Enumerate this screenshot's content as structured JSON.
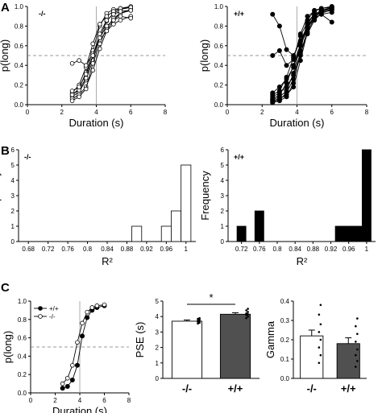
{
  "panel_labels": {
    "a": "A",
    "b": "B",
    "c": "C"
  },
  "chart_data": [
    {
      "id": "A1",
      "type": "line",
      "group_label": "-/-",
      "xlabel": "Duration (s)",
      "ylabel": "p(long)",
      "xlim": [
        0,
        8
      ],
      "ylim": [
        0,
        1.0
      ],
      "xticks": [
        "0",
        "2",
        "4",
        "6",
        "8"
      ],
      "yticks": [
        "0.0",
        "0.2",
        "0.4",
        "0.6",
        "0.8",
        "1.0"
      ],
      "marker": "open-circle",
      "reference_lines": {
        "x": 4,
        "y": 0.5
      },
      "x": [
        2.6,
        3.0,
        3.4,
        3.8,
        4.2,
        4.6,
        5.0,
        5.4,
        6.0
      ],
      "series": [
        {
          "values": [
            0.1,
            0.16,
            0.33,
            0.55,
            0.8,
            0.93,
            0.97,
            0.98,
            1.0
          ]
        },
        {
          "values": [
            0.08,
            0.13,
            0.25,
            0.45,
            0.68,
            0.85,
            0.93,
            0.97,
            0.99
          ]
        },
        {
          "values": [
            0.06,
            0.1,
            0.18,
            0.35,
            0.57,
            0.75,
            0.86,
            0.93,
            0.97
          ]
        },
        {
          "values": [
            0.12,
            0.2,
            0.38,
            0.62,
            0.82,
            0.9,
            0.95,
            0.98,
            0.99
          ]
        },
        {
          "values": [
            0.04,
            0.08,
            0.16,
            0.42,
            0.62,
            0.78,
            0.88,
            0.93,
            0.96
          ]
        },
        {
          "values": [
            0.1,
            0.15,
            0.27,
            0.5,
            0.72,
            0.86,
            0.92,
            0.95,
            0.96
          ]
        },
        {
          "values": [
            0.42,
            0.45,
            0.4,
            0.52,
            0.66,
            0.75,
            0.82,
            0.86,
            0.9
          ]
        },
        {
          "values": [
            0.14,
            0.18,
            0.31,
            0.5,
            0.68,
            0.8,
            0.86,
            0.9,
            0.88
          ]
        }
      ]
    },
    {
      "id": "A2",
      "type": "line",
      "group_label": "+/+",
      "xlabel": "Duration (s)",
      "ylabel": "p(long)",
      "xlim": [
        0,
        8
      ],
      "ylim": [
        0,
        1.0
      ],
      "xticks": [
        "0",
        "2",
        "4",
        "6",
        "8"
      ],
      "yticks": [
        "0.0",
        "0.2",
        "0.4",
        "0.6",
        "0.8",
        "1.0"
      ],
      "marker": "filled-circle",
      "reference_lines": {
        "x": 4,
        "y": 0.5
      },
      "x": [
        2.6,
        3.0,
        3.4,
        3.8,
        4.2,
        4.6,
        5.0,
        5.4,
        6.0
      ],
      "series": [
        {
          "values": [
            0.06,
            0.1,
            0.22,
            0.4,
            0.62,
            0.82,
            0.92,
            0.96,
            0.99
          ]
        },
        {
          "values": [
            0.04,
            0.06,
            0.1,
            0.18,
            0.45,
            0.74,
            0.88,
            0.95,
            0.97
          ]
        },
        {
          "values": [
            0.02,
            0.04,
            0.08,
            0.22,
            0.55,
            0.86,
            0.96,
            0.98,
            1.0
          ]
        },
        {
          "values": [
            0.05,
            0.08,
            0.14,
            0.32,
            0.6,
            0.8,
            0.9,
            0.96,
            0.98
          ]
        },
        {
          "values": [
            0.1,
            0.14,
            0.28,
            0.48,
            0.7,
            0.84,
            0.92,
            0.94,
            0.96
          ]
        },
        {
          "values": [
            0.08,
            0.12,
            0.18,
            0.3,
            0.52,
            0.72,
            0.86,
            0.93,
            0.97
          ]
        },
        {
          "values": [
            0.5,
            0.55,
            0.4,
            0.46,
            0.72,
            0.9,
            0.95,
            0.98,
            0.99
          ]
        },
        {
          "values": [
            0.92,
            0.8,
            0.56,
            0.5,
            0.65,
            0.8,
            0.88,
            0.92,
            0.94
          ]
        },
        {
          "values": [
            0.03,
            0.05,
            0.12,
            0.26,
            0.5,
            0.78,
            0.9,
            0.95,
            0.99
          ]
        },
        {
          "values": [
            0.12,
            0.18,
            0.26,
            0.38,
            0.6,
            0.78,
            0.88,
            0.92,
            0.84
          ]
        }
      ]
    },
    {
      "id": "B1",
      "type": "bar",
      "group_label": "-/-",
      "xlabel": "R²",
      "ylabel": "Frequency",
      "categories": [
        "0.68",
        "0.72",
        "0.76",
        "0.8",
        "0.84",
        "0.88",
        "0.92",
        "0.96",
        "1"
      ],
      "xlim": [
        0.66,
        1.02
      ],
      "ylim": [
        0,
        6
      ],
      "yticks": [
        "0",
        "1",
        "2",
        "3",
        "4",
        "5",
        "6"
      ],
      "bar_fill": "#ffffff",
      "bars": [
        {
          "x": 0.9,
          "value": 1
        },
        {
          "x": 0.96,
          "value": 1
        },
        {
          "x": 0.98,
          "value": 2
        },
        {
          "x": 1.0,
          "value": 5
        }
      ]
    },
    {
      "id": "B2",
      "type": "bar",
      "group_label": "+/+",
      "xlabel": "R²",
      "ylabel": "Frequency",
      "categories": [
        "0.72",
        "0.76",
        "0.8",
        "0.84",
        "0.88",
        "0.92",
        "0.96",
        "1"
      ],
      "xlim": [
        0.69,
        1.02
      ],
      "ylim": [
        0,
        6
      ],
      "yticks": [
        "0",
        "1",
        "2",
        "3",
        "4",
        "5",
        "6"
      ],
      "bar_fill": "#000000",
      "bars": [
        {
          "x": 0.72,
          "value": 1
        },
        {
          "x": 0.76,
          "value": 2
        },
        {
          "x": 0.94,
          "value": 1
        },
        {
          "x": 0.96,
          "value": 1
        },
        {
          "x": 0.98,
          "value": 1
        },
        {
          "x": 1.0,
          "value": 6
        }
      ]
    },
    {
      "id": "C1",
      "type": "line",
      "xlabel": "Duration (s)",
      "ylabel": "p(long)",
      "xlim": [
        0,
        8
      ],
      "ylim": [
        0,
        1.0
      ],
      "xticks": [
        "0",
        "2",
        "4",
        "6",
        "8"
      ],
      "yticks": [
        "0.0",
        "0.2",
        "0.4",
        "0.6",
        "0.8",
        "1.0"
      ],
      "reference_lines": {
        "x": 4,
        "y": 0.5
      },
      "x": [
        2.6,
        3.0,
        3.4,
        3.8,
        4.2,
        4.6,
        5.0,
        5.4,
        6.0
      ],
      "series": [
        {
          "name": "+/+",
          "marker": "filled-circle",
          "values": [
            0.05,
            0.07,
            0.14,
            0.3,
            0.62,
            0.82,
            0.9,
            0.93,
            0.95
          ]
        },
        {
          "name": "-/-",
          "marker": "open-circle",
          "values": [
            0.1,
            0.16,
            0.3,
            0.55,
            0.76,
            0.88,
            0.93,
            0.95,
            0.96
          ]
        }
      ]
    },
    {
      "id": "C2",
      "type": "bar",
      "ylabel": "PSE (s)",
      "categories": [
        "-/-",
        "+/+"
      ],
      "values": [
        3.7,
        4.15
      ],
      "errors": [
        0.08,
        0.1
      ],
      "fills": [
        "#ffffff",
        "#505050"
      ],
      "ylim": [
        0,
        5
      ],
      "yticks": [
        "0",
        "1",
        "2",
        "3",
        "4",
        "5"
      ],
      "significance": "*",
      "points": [
        [
          3.55,
          3.6,
          3.65,
          3.7,
          3.75,
          3.8,
          3.85,
          3.9
        ],
        [
          3.9,
          4.0,
          4.1,
          4.15,
          4.2,
          4.3,
          4.4,
          4.5
        ]
      ]
    },
    {
      "id": "C3",
      "type": "bar",
      "ylabel": "Gamma",
      "categories": [
        "-/-",
        "+/+"
      ],
      "values": [
        0.22,
        0.18
      ],
      "errors": [
        0.03,
        0.03
      ],
      "fills": [
        "#ffffff",
        "#505050"
      ],
      "ylim": [
        0,
        0.4
      ],
      "yticks": [
        "0.0",
        "0.1",
        "0.2",
        "0.3",
        "0.4"
      ],
      "points": [
        [
          0.08,
          0.12,
          0.16,
          0.2,
          0.24,
          0.28,
          0.33,
          0.38
        ],
        [
          0.06,
          0.09,
          0.12,
          0.15,
          0.19,
          0.23,
          0.27,
          0.31
        ]
      ]
    }
  ]
}
